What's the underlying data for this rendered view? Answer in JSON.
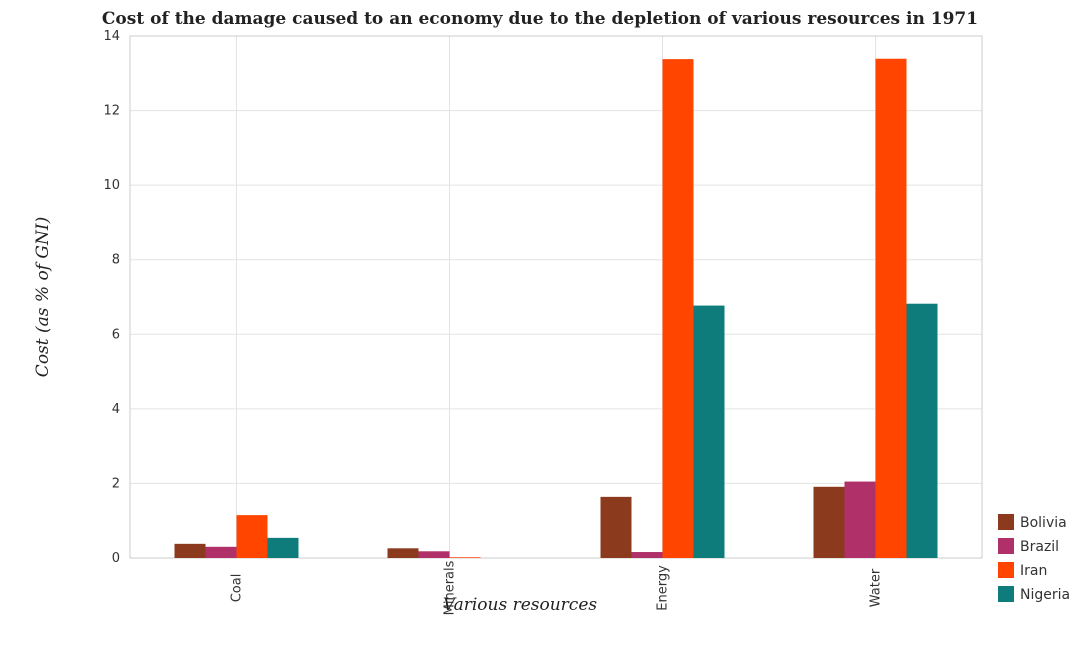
{
  "chart_data": {
    "type": "bar",
    "title": "Cost of the damage caused to an economy due to the depletion of various resources in 1971",
    "xlabel": "Various resources",
    "ylabel": "Cost (as % of GNI)",
    "ylim": [
      0,
      14
    ],
    "yticks": [
      0,
      2,
      4,
      6,
      8,
      10,
      12,
      14
    ],
    "grid": true,
    "legend_position": "bottom-right",
    "categories": [
      "Coal",
      "Minerals",
      "Energy",
      "Water"
    ],
    "series": [
      {
        "name": "Bolivia",
        "color": "#8b3a1e",
        "values": [
          0.38,
          0.26,
          1.64,
          1.91
        ]
      },
      {
        "name": "Brazil",
        "color": "#b0306a",
        "values": [
          0.3,
          0.18,
          0.16,
          2.05
        ]
      },
      {
        "name": "Iran",
        "color": "#ff4500",
        "values": [
          1.15,
          0.02,
          13.38,
          13.39
        ]
      },
      {
        "name": "Nigeria",
        "color": "#0e7c7b",
        "values": [
          0.54,
          0.0,
          6.77,
          6.82
        ]
      }
    ]
  }
}
